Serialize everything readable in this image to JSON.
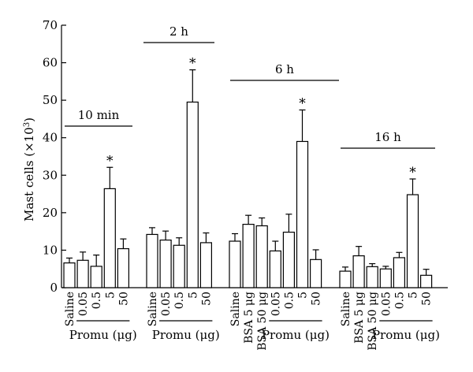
{
  "chart_data": {
    "type": "bar",
    "title": "",
    "xlabel": "",
    "ylabel": "Mast cells (×10",
    "ylabel_sup": "3",
    "ylabel_close": ")",
    "ylim": [
      0,
      70
    ],
    "yticks": [
      0,
      10,
      20,
      30,
      40,
      50,
      60,
      70
    ],
    "grid": false,
    "groups": [
      {
        "name": "10 min",
        "categories": [
          "Saline",
          "0.05",
          "0.5",
          "5",
          "50"
        ],
        "values": [
          6.6,
          7.3,
          5.7,
          26.4,
          10.4
        ],
        "errors": [
          1.3,
          2.2,
          3.0,
          5.7,
          2.6
        ],
        "significant": [
          false,
          false,
          false,
          true,
          false
        ],
        "promu_label": "Promu (μg)",
        "promu_range": [
          1,
          4
        ]
      },
      {
        "name": "2 h",
        "categories": [
          "Saline",
          "0.05",
          "0.5",
          "5",
          "50"
        ],
        "values": [
          14.2,
          12.7,
          11.3,
          49.5,
          12.0
        ],
        "errors": [
          1.8,
          2.4,
          2.0,
          8.6,
          2.6
        ],
        "significant": [
          false,
          false,
          false,
          true,
          false
        ],
        "promu_label": "Promu (μg)",
        "promu_range": [
          1,
          4
        ]
      },
      {
        "name": "6 h",
        "categories": [
          "Saline",
          "BSA 5 μg",
          "BSA 50 μg",
          "0.05",
          "0.5",
          "5",
          "50"
        ],
        "values": [
          12.4,
          16.9,
          16.5,
          9.8,
          14.8,
          39.0,
          7.5
        ],
        "errors": [
          2.0,
          2.4,
          2.1,
          2.6,
          4.8,
          8.4,
          2.6
        ],
        "significant": [
          false,
          false,
          false,
          false,
          false,
          true,
          false
        ],
        "promu_label": "Promu (μg)",
        "promu_range": [
          3,
          6
        ]
      },
      {
        "name": "16 h",
        "categories": [
          "Saline",
          "BSA 5 μg",
          "BSA 50 μg",
          "0.05",
          "0.5",
          "5",
          "50"
        ],
        "values": [
          4.4,
          8.5,
          5.6,
          5.0,
          8.0,
          24.8,
          3.3
        ],
        "errors": [
          1.1,
          2.5,
          0.8,
          0.7,
          1.4,
          4.2,
          1.6
        ],
        "significant": [
          false,
          false,
          false,
          false,
          false,
          true,
          false
        ],
        "promu_label": "Promu (μg)",
        "promu_range": [
          3,
          6
        ]
      }
    ],
    "significance_marker": "*"
  }
}
